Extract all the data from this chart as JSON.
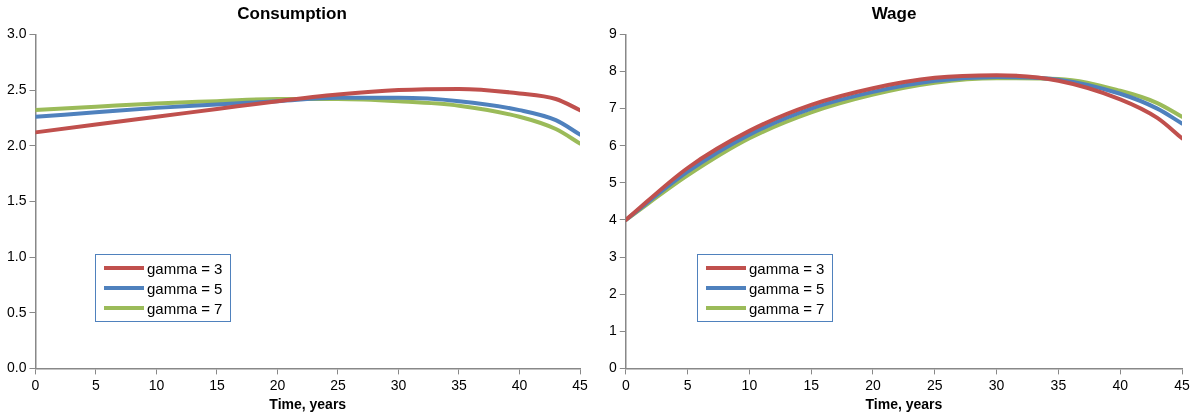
{
  "chart_data": [
    {
      "type": "line",
      "title": "Consumption",
      "xlabel": "Time, years",
      "x": [
        0,
        5,
        10,
        15,
        20,
        25,
        30,
        35,
        40,
        43,
        45
      ],
      "xlim": [
        0,
        45
      ],
      "xticks": [
        0,
        5,
        10,
        15,
        20,
        25,
        30,
        35,
        40,
        45
      ],
      "ylim": [
        0,
        3
      ],
      "yticks": [
        {
          "value": 0,
          "label": "0.0"
        },
        {
          "value": 0.5,
          "label": "0.5"
        },
        {
          "value": 1,
          "label": "1.0"
        },
        {
          "value": 1.5,
          "label": "1.5"
        },
        {
          "value": 2,
          "label": "2.0"
        },
        {
          "value": 2.5,
          "label": "2.5"
        },
        {
          "value": 3,
          "label": "3.0"
        }
      ],
      "grid": false,
      "legend": "bottom left",
      "marker": "none",
      "series": [
        {
          "name": "gamma = 3",
          "color": "#c0504d",
          "values": [
            2.12,
            2.19,
            2.26,
            2.33,
            2.4,
            2.46,
            2.5,
            2.51,
            2.47,
            2.42,
            2.32
          ]
        },
        {
          "name": "gamma = 5",
          "color": "#4f81bd",
          "values": [
            2.26,
            2.3,
            2.34,
            2.37,
            2.4,
            2.43,
            2.43,
            2.4,
            2.32,
            2.23,
            2.1
          ]
        },
        {
          "name": "gamma = 7",
          "color": "#9bbb59",
          "values": [
            2.32,
            2.35,
            2.38,
            2.4,
            2.42,
            2.42,
            2.4,
            2.36,
            2.26,
            2.15,
            2.02
          ]
        }
      ]
    },
    {
      "type": "line",
      "title": "Wage",
      "xlabel": "Time, years",
      "x": [
        0,
        5,
        10,
        15,
        20,
        25,
        30,
        35,
        40,
        43,
        45
      ],
      "xlim": [
        0,
        45
      ],
      "xticks": [
        0,
        5,
        10,
        15,
        20,
        25,
        30,
        35,
        40,
        45
      ],
      "ylim": [
        0,
        9
      ],
      "yticks": [
        0,
        1,
        2,
        3,
        4,
        5,
        6,
        7,
        8,
        9
      ],
      "grid": false,
      "legend": "bottom left",
      "marker": "none",
      "series": [
        {
          "name": "gamma = 3",
          "color": "#c0504d",
          "values": [
            4.0,
            5.4,
            6.4,
            7.1,
            7.55,
            7.83,
            7.9,
            7.75,
            7.25,
            6.75,
            6.2
          ]
        },
        {
          "name": "gamma = 5",
          "color": "#4f81bd",
          "values": [
            4.0,
            5.3,
            6.3,
            7.0,
            7.45,
            7.75,
            7.85,
            7.78,
            7.4,
            7.0,
            6.6
          ]
        },
        {
          "name": "gamma = 7",
          "color": "#9bbb59",
          "values": [
            4.0,
            5.2,
            6.2,
            6.9,
            7.38,
            7.7,
            7.82,
            7.8,
            7.48,
            7.15,
            6.78
          ]
        }
      ]
    }
  ]
}
